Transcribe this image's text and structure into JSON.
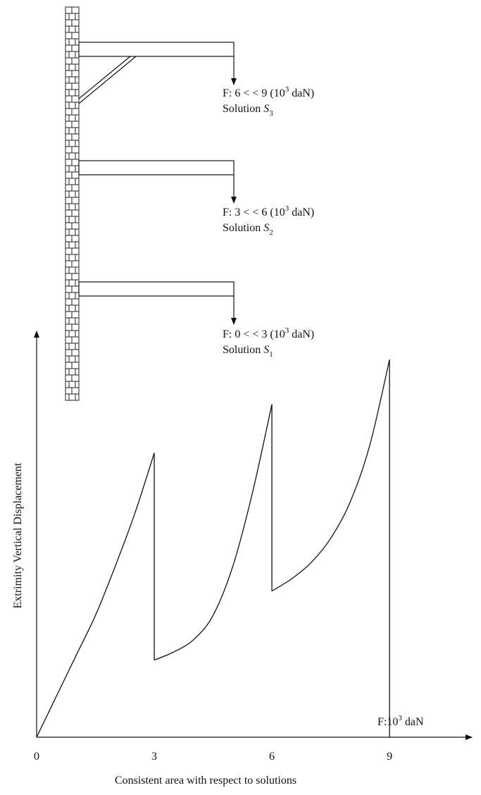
{
  "cases": [
    {
      "id": "s3",
      "force_prefix": "F: 6 < < 9 (10",
      "force_exp": "3",
      "force_suffix": " daN)",
      "solution_prefix": "Solution ",
      "solution_symbol": "S",
      "solution_sub": "3"
    },
    {
      "id": "s2",
      "force_prefix": "F: 3 < < 6 (10",
      "force_exp": "3",
      "force_suffix": " daN)",
      "solution_prefix": "Solution ",
      "solution_symbol": "S",
      "solution_sub": "2"
    },
    {
      "id": "s1",
      "force_prefix": "F: 0 < < 3 (10",
      "force_exp": "3",
      "force_suffix": " daN)",
      "solution_prefix": "Solution ",
      "solution_symbol": "S",
      "solution_sub": "1"
    }
  ],
  "chart_data": {
    "type": "line",
    "ylabel": "Extrimity Vertical Displacement",
    "xlabel_prefix": "F:10",
    "xlabel_exp": "3",
    "xlabel_suffix": " daN",
    "caption": "Consistent area with respect to solutions",
    "x_ticks": [
      "0",
      "3",
      "6",
      "9"
    ],
    "xlim": [
      0,
      11.1
    ],
    "ylim": [
      0,
      10
    ],
    "series": [
      {
        "x": [
          0,
          0.5,
          1,
          1.5,
          2,
          2.5,
          3
        ],
        "y": [
          0,
          1.0,
          2.0,
          3.0,
          4.2,
          5.5,
          7.0
        ]
      },
      {
        "x": [
          3,
          3.5,
          4,
          4.5,
          5,
          5.5,
          6
        ],
        "y": [
          1.9,
          2.1,
          2.4,
          3.0,
          4.2,
          6.0,
          8.2
        ]
      },
      {
        "x": [
          6,
          6.5,
          7,
          7.5,
          8,
          8.5,
          9
        ],
        "y": [
          3.6,
          3.9,
          4.3,
          4.9,
          5.8,
          7.2,
          9.3
        ]
      }
    ],
    "drops": [
      {
        "x": 3,
        "from": 7.0,
        "to": 1.9
      },
      {
        "x": 6,
        "from": 8.2,
        "to": 3.6
      },
      {
        "x": 9,
        "from": 9.3,
        "to": 0
      }
    ]
  }
}
